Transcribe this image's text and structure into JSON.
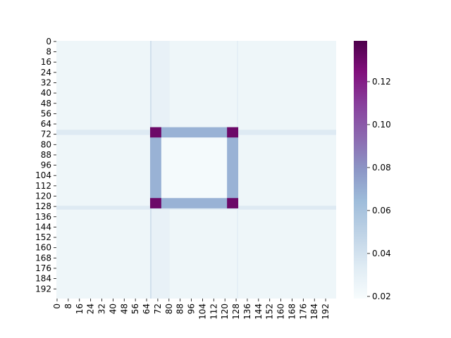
{
  "chart_data": {
    "type": "heatmap",
    "title": "",
    "xlabel": "",
    "ylabel": "",
    "n_rows": 200,
    "n_cols": 200,
    "x_tick_labels": [
      "0",
      "8",
      "16",
      "24",
      "32",
      "40",
      "48",
      "56",
      "64",
      "72",
      "80",
      "88",
      "96",
      "104",
      "112",
      "120",
      "128",
      "136",
      "144",
      "152",
      "160",
      "168",
      "176",
      "184",
      "192"
    ],
    "y_tick_labels": [
      "0",
      "8",
      "16",
      "24",
      "32",
      "40",
      "48",
      "56",
      "64",
      "72",
      "80",
      "88",
      "96",
      "104",
      "112",
      "120",
      "128",
      "136",
      "144",
      "152",
      "160",
      "168",
      "176",
      "184",
      "192"
    ],
    "colorbar": {
      "colormap": "BuPu",
      "vmin": 0.019,
      "vmax": 0.139,
      "tick_labels": [
        "0.02",
        "0.04",
        "0.06",
        "0.08",
        "0.10",
        "0.12"
      ]
    },
    "description_of_values": {
      "background": 0.025,
      "square_interior": 0.021,
      "square_edges": 0.068,
      "square_corners": 0.13,
      "faint_lines": 0.035,
      "square_bounds": {
        "row_min": 67,
        "row_max": 130,
        "col_min": 67,
        "col_max": 130
      }
    }
  }
}
